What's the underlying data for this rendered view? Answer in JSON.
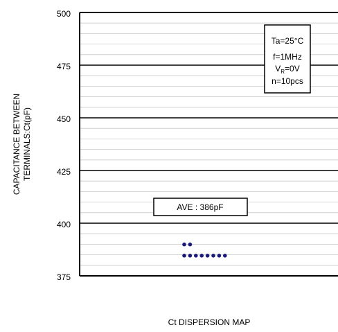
{
  "chart_data": {
    "type": "scatter",
    "title": "",
    "xlabel": "Ct DISPERSION MAP",
    "ylabel": [
      "CAPACITANCE BETWEEN",
      "TERMINALS:Ct(pF)"
    ],
    "ylim": [
      375,
      500
    ],
    "yticks": [
      "500",
      "475",
      "450",
      "425",
      "400",
      "375"
    ],
    "grid": "horizontal",
    "conditions": {
      "ta": "Ta=25°C",
      "f": "f=1MHz",
      "vr_main": "V",
      "vr_sub": "R",
      "vr_rest": "=0V",
      "n": "n=10pcs"
    },
    "average_label": "AVE : 386pF",
    "average": 386,
    "points": [
      {
        "rank": 0,
        "y": 390
      },
      {
        "rank": 1,
        "y": 390
      },
      {
        "rank": 0,
        "y": 385
      },
      {
        "rank": 1,
        "y": 385
      },
      {
        "rank": 2,
        "y": 385
      },
      {
        "rank": 3,
        "y": 385
      },
      {
        "rank": 4,
        "y": 385
      },
      {
        "rank": 5,
        "y": 385
      },
      {
        "rank": 6,
        "y": 385
      },
      {
        "rank": 7,
        "y": 385
      }
    ],
    "point_color": "#1a1a7a"
  }
}
